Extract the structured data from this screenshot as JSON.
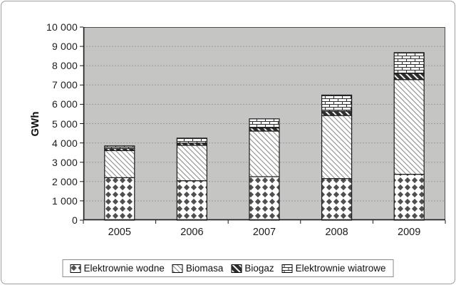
{
  "chart_data": {
    "type": "bar",
    "stacked": true,
    "title": "",
    "xlabel": "",
    "ylabel": "GWh",
    "categories": [
      "2005",
      "2006",
      "2007",
      "2008",
      "2009"
    ],
    "series": [
      {
        "name": "Elektrownie wodne",
        "pattern": "diamond",
        "values": [
          2201,
          2043,
          2253,
          2153,
          2376
        ]
      },
      {
        "name": "Biomasa",
        "pattern": "light-diagonal",
        "values": [
          1400,
          1833,
          2360,
          3268,
          4904
        ]
      },
      {
        "name": "Biogaz",
        "pattern": "dark-diagonal",
        "values": [
          111,
          117,
          162,
          221,
          319
        ]
      },
      {
        "name": "Elektrownie wiatrowe",
        "pattern": "brick",
        "values": [
          135,
          257,
          472,
          837,
          1077
        ]
      }
    ],
    "ylim": [
      0,
      10000
    ],
    "y_tick_step": 1000,
    "y_tick_labels": [
      "0",
      "1 000",
      "2 000",
      "3 000",
      "4 000",
      "5 000",
      "6 000",
      "7 000",
      "8 000",
      "9 000",
      "10 000"
    ],
    "grid": true,
    "legend_position": "bottom"
  },
  "colors": {
    "plot_bg": "#c5c6c3",
    "plot_border": "#4d4d4d",
    "grid": "#9b9b9b",
    "bar_border": "#1b1b1b",
    "pattern_fg": "#2e2e2e",
    "axis": "#1b1b1b"
  }
}
